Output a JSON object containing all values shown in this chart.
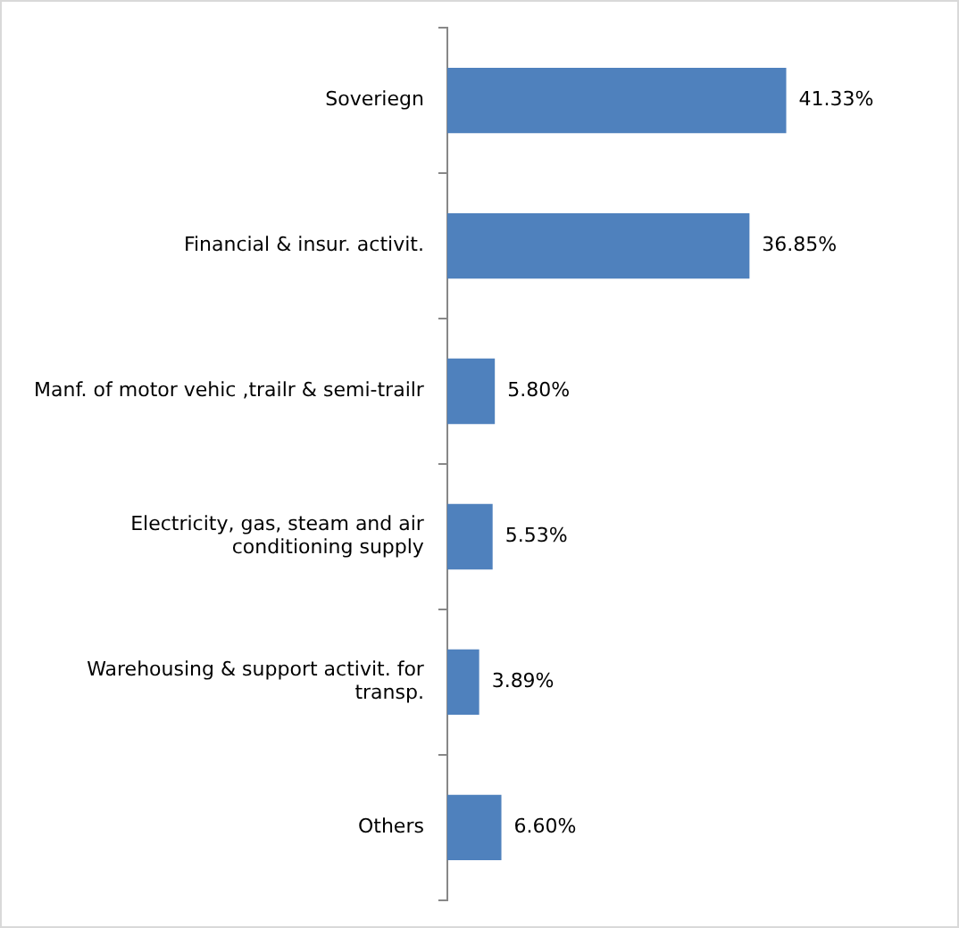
{
  "chart_data": {
    "type": "bar",
    "orientation": "horizontal",
    "categories": [
      "Soveriegn",
      "Financial & insur. activit.",
      "Manf. of motor vehic ,trailr & semi-trailr",
      "Electricity, gas, steam and air conditioning supply",
      "Warehousing & support activit. for transp.",
      "Others"
    ],
    "values": [
      41.33,
      36.85,
      5.8,
      5.53,
      3.89,
      6.6
    ],
    "value_labels": [
      "41.33%",
      "36.85%",
      "5.80%",
      "5.53%",
      "3.89%",
      "6.60%"
    ],
    "color": "#4f81bd",
    "grid": false,
    "legend": false
  }
}
